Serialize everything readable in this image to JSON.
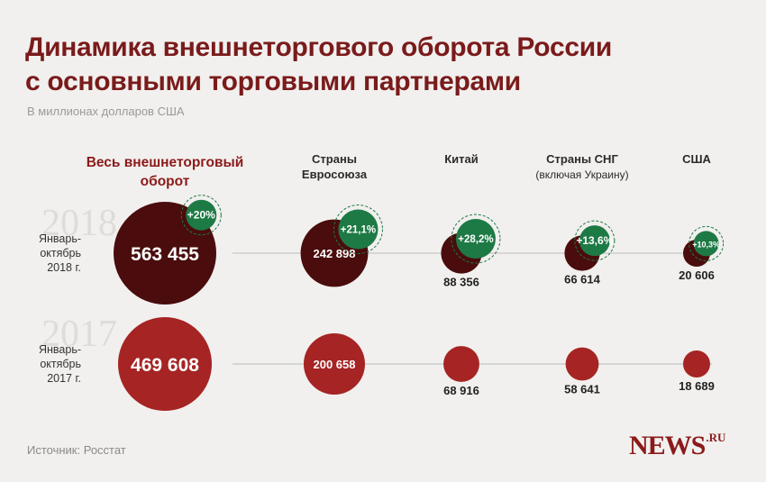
{
  "title_line1": "Динамика внешнеторгового оборота России",
  "title_line2": "с основными торговыми партнерами",
  "subtitle": "В миллионах долларов США",
  "source": "Источник: Росстат",
  "logo": {
    "main": "NEWS",
    "suffix": ".RU"
  },
  "colors": {
    "year2018": "#4a0c0c",
    "year2017": "#a62424",
    "growth": "#1e7a45",
    "heading_total": "#8b1a1a",
    "heading": "#2b2b2b",
    "watermark": "#dedcd9"
  },
  "chart_data": {
    "type": "bubble",
    "unit": "В миллионах долларов США",
    "categories": [
      {
        "label": "Весь внешнеторговый оборот",
        "note": ""
      },
      {
        "label": "Страны Евросоюза",
        "note": ""
      },
      {
        "label": "Китай",
        "note": ""
      },
      {
        "label": "Страны СНГ",
        "note": "(включая Украину)"
      },
      {
        "label": "США",
        "note": ""
      }
    ],
    "series": [
      {
        "year": "2018",
        "period": [
          "Январь-",
          "октябрь",
          "2018 г."
        ],
        "values": [
          563455,
          242898,
          88356,
          66614,
          20606
        ],
        "labels": [
          "563 455",
          "242 898",
          "88 356",
          "66 614",
          "20 606"
        ]
      },
      {
        "year": "2017",
        "period": [
          "Январь-",
          "октябрь",
          "2017 г."
        ],
        "values": [
          469608,
          200658,
          68916,
          58641,
          18689
        ],
        "labels": [
          "469 608",
          "200 658",
          "68 916",
          "58 641",
          "18 689"
        ]
      }
    ],
    "growth": [
      "+20%",
      "+21,1%",
      "+28,2%",
      "+13,6%",
      "+10,3%"
    ]
  }
}
